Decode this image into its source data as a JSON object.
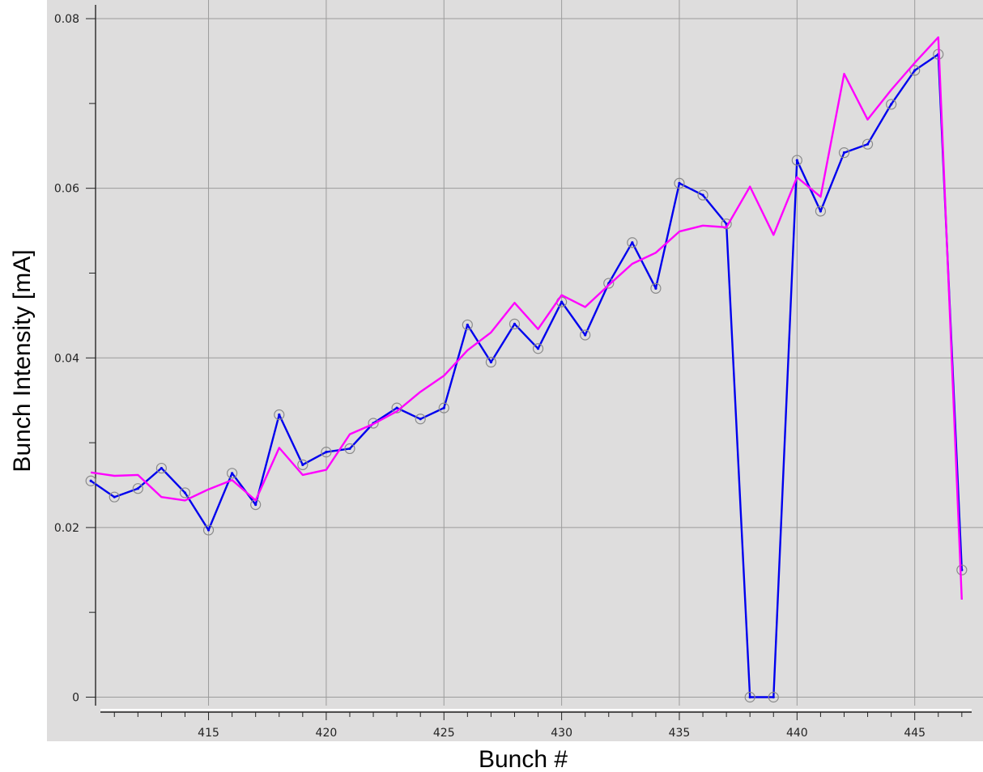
{
  "chart_data": {
    "type": "line",
    "title": "",
    "xlabel": "Bunch #",
    "ylabel": "Bunch Intensity [mA]",
    "xlim": [
      410.2,
      447.9
    ],
    "ylim": [
      -0.001,
      0.0822
    ],
    "grid": true,
    "legend": "none",
    "x_ticks": [
      415,
      420,
      425,
      430,
      435,
      440,
      445
    ],
    "x_tick_labels": [
      "415",
      "420",
      "425",
      "430",
      "435",
      "440",
      "445"
    ],
    "y_ticks": [
      0,
      0.02,
      0.04,
      0.06,
      0.08
    ],
    "y_tick_labels": [
      "0",
      "0.02",
      "0.04",
      "0.06",
      "0.08"
    ],
    "series": [
      {
        "color": "#0000ee",
        "markers": "open-circle",
        "x": [
          410,
          411,
          412,
          413,
          414,
          415,
          416,
          417,
          418,
          419,
          420,
          421,
          422,
          423,
          424,
          425,
          426,
          427,
          428,
          429,
          430,
          431,
          432,
          433,
          434,
          435,
          436,
          437,
          438,
          439,
          440,
          441,
          442,
          443,
          444,
          445,
          446,
          447
        ],
        "y": [
          0.0255,
          0.0236,
          0.0246,
          0.027,
          0.0241,
          0.0197,
          0.0264,
          0.0227,
          0.0333,
          0.0274,
          0.0289,
          0.0293,
          0.0323,
          0.0341,
          0.0328,
          0.0341,
          0.0439,
          0.0395,
          0.044,
          0.0411,
          0.0466,
          0.0427,
          0.0488,
          0.0536,
          0.0482,
          0.0606,
          0.0592,
          0.0558,
          0.0,
          0.0,
          0.0633,
          0.0573,
          0.0642,
          0.0652,
          0.0699,
          0.0739,
          0.0758,
          0.015
        ]
      },
      {
        "color": "#ff00ff",
        "markers": "none",
        "x": [
          410,
          411,
          412,
          413,
          414,
          415,
          416,
          417,
          418,
          419,
          420,
          421,
          422,
          423,
          424,
          425,
          426,
          427,
          428,
          429,
          430,
          431,
          432,
          433,
          434,
          435,
          436,
          437,
          438,
          439,
          440,
          441,
          442,
          443,
          444,
          445,
          446,
          447
        ],
        "y": [
          0.0265,
          0.0261,
          0.0262,
          0.0236,
          0.0232,
          0.0245,
          0.0256,
          0.0232,
          0.0294,
          0.0262,
          0.0268,
          0.031,
          0.0322,
          0.0337,
          0.036,
          0.0379,
          0.0409,
          0.043,
          0.0465,
          0.0434,
          0.0474,
          0.046,
          0.0486,
          0.0511,
          0.0524,
          0.0549,
          0.0556,
          0.0554,
          0.0602,
          0.0545,
          0.0613,
          0.059,
          0.0735,
          0.0681,
          0.0716,
          0.0748,
          0.0778,
          0.0115
        ]
      }
    ]
  }
}
